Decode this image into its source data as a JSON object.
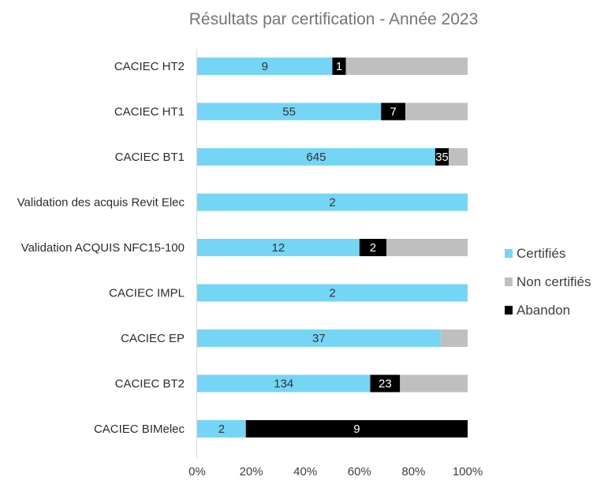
{
  "chart_data": {
    "type": "bar",
    "orientation": "horizontal",
    "stacked": "100%",
    "title": "Résultats par certification - Année 2023",
    "categories": [
      "CACIEC HT2",
      "CACIEC HT1",
      "CACIEC BT1",
      "Validation des acquis Revit Elec",
      "Validation ACQUIS NFC15-100",
      "CACIEC IMPL",
      "CACIEC EP",
      "CACIEC BT2",
      "CACIEC BIMelec"
    ],
    "series": [
      {
        "name": "Certifiés",
        "color": "#75D5F5",
        "label_color": "#333333",
        "values": [
          9,
          55,
          645,
          2,
          12,
          2,
          37,
          134,
          2
        ],
        "percent": [
          50,
          68,
          88,
          100,
          60,
          100,
          90,
          64,
          18
        ],
        "labels": [
          "9",
          "55",
          "645",
          "2",
          "12",
          "2",
          "37",
          "134",
          "2"
        ]
      },
      {
        "name": "Abandon",
        "color": "#000000",
        "label_color": "#ffffff",
        "values": [
          1,
          7,
          35,
          null,
          2,
          null,
          null,
          23,
          9
        ],
        "percent": [
          5,
          9,
          5,
          0,
          10,
          0,
          0,
          11,
          82
        ],
        "labels": [
          "1",
          "7",
          "35",
          "",
          "2",
          "",
          "",
          "23",
          "9"
        ]
      },
      {
        "name": "Non certifiés",
        "color": "#BFBFBF",
        "label_color": "#333333",
        "values": [
          null,
          null,
          null,
          null,
          null,
          null,
          null,
          null,
          null
        ],
        "percent": [
          45,
          23,
          7,
          0,
          30,
          0,
          10,
          25,
          0
        ],
        "labels": [
          "",
          "",
          "",
          "",
          "",
          "",
          "",
          "",
          ""
        ]
      }
    ],
    "x_ticks": [
      "0%",
      "20%",
      "40%",
      "60%",
      "80%",
      "100%"
    ],
    "xlim": [
      0,
      100
    ],
    "grid": false,
    "legend": {
      "position": "right",
      "entries": [
        {
          "label": "Certifiés",
          "color": "#75D5F5"
        },
        {
          "label": "Non certifiés",
          "color": "#BFBFBF"
        },
        {
          "label": "Abandon",
          "color": "#000000"
        }
      ]
    }
  }
}
